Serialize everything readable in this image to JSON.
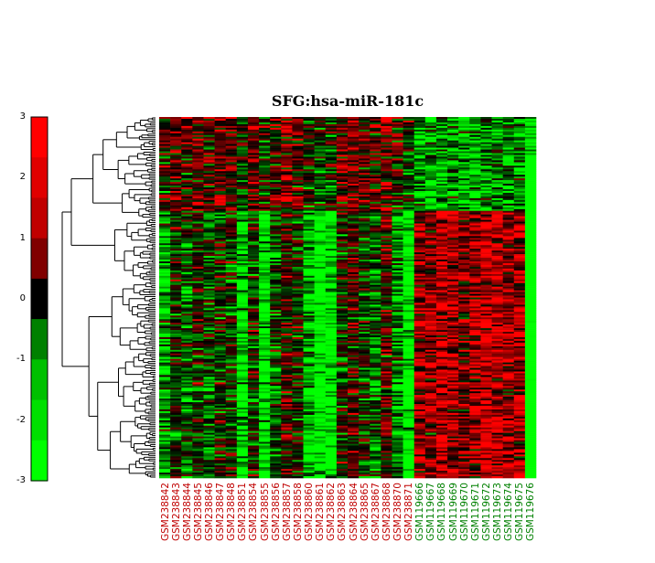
{
  "chart_data": {
    "type": "heatmap",
    "title": "SFG:hsa-miR-181c",
    "colorbar": {
      "ticks": [
        "3",
        "2",
        "1",
        "0",
        "-1",
        "-2",
        "-3"
      ],
      "range": [
        -3,
        3
      ],
      "colormap": [
        "#00ff00",
        "#00e000",
        "#00c000",
        "#008000",
        "#000000",
        "#800000",
        "#c00000",
        "#e00000",
        "#ff0000"
      ]
    },
    "columns": [
      {
        "label": "GSM238842",
        "color": "#c00000"
      },
      {
        "label": "GSM238843",
        "color": "#c00000"
      },
      {
        "label": "GSM238844",
        "color": "#c00000"
      },
      {
        "label": "GSM238845",
        "color": "#c00000"
      },
      {
        "label": "GSM238846",
        "color": "#c00000"
      },
      {
        "label": "GSM238847",
        "color": "#c00000"
      },
      {
        "label": "GSM238848",
        "color": "#c00000"
      },
      {
        "label": "GSM238851",
        "color": "#c00000"
      },
      {
        "label": "GSM238854",
        "color": "#c00000"
      },
      {
        "label": "GSM238855",
        "color": "#c00000"
      },
      {
        "label": "GSM238856",
        "color": "#c00000"
      },
      {
        "label": "GSM238857",
        "color": "#c00000"
      },
      {
        "label": "GSM238858",
        "color": "#c00000"
      },
      {
        "label": "GSM238860",
        "color": "#c00000"
      },
      {
        "label": "GSM238861",
        "color": "#c00000"
      },
      {
        "label": "GSM238862",
        "color": "#c00000"
      },
      {
        "label": "GSM238863",
        "color": "#c00000"
      },
      {
        "label": "GSM238864",
        "color": "#c00000"
      },
      {
        "label": "GSM238865",
        "color": "#c00000"
      },
      {
        "label": "GSM238867",
        "color": "#c00000"
      },
      {
        "label": "GSM238868",
        "color": "#c00000"
      },
      {
        "label": "GSM238870",
        "color": "#c00000"
      },
      {
        "label": "GSM238871",
        "color": "#c00000"
      },
      {
        "label": "GSM119666",
        "color": "#008000"
      },
      {
        "label": "GSM119667",
        "color": "#008000"
      },
      {
        "label": "GSM119668",
        "color": "#008000"
      },
      {
        "label": "GSM119669",
        "color": "#008000"
      },
      {
        "label": "GSM119670",
        "color": "#008000"
      },
      {
        "label": "GSM119671",
        "color": "#008000"
      },
      {
        "label": "GSM119672",
        "color": "#008000"
      },
      {
        "label": "GSM119673",
        "color": "#008000"
      },
      {
        "label": "GSM119674",
        "color": "#008000"
      },
      {
        "label": "GSM119675",
        "color": "#008000"
      },
      {
        "label": "GSM119676",
        "color": "#008000"
      }
    ],
    "row_count": 200,
    "dendrogram": "rows",
    "pattern": {
      "upper_block_row_fraction": 0.26,
      "groupA_columns": 23,
      "groupB_columns": 11,
      "lower_block_groupA_bias": -0.6,
      "lower_block_groupB_bias": 1.3,
      "upper_block_groupA_bias": 0.4,
      "upper_block_groupB_bias": -1.2
    }
  }
}
